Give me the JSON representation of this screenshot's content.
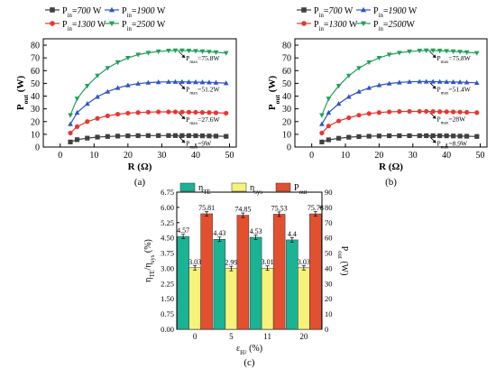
{
  "colors": {
    "p700": "#404040",
    "p1300": "#e8362f",
    "p1900": "#2f55c7",
    "p2500": "#22a05a",
    "eta_te": "#1ab394",
    "eta_sys": "#f7f27a",
    "p_out": "#e2502f"
  },
  "chart_data": [
    {
      "type": "line",
      "panel_label": "(a)",
      "xlabel_main": "R",
      "xlabel_unit": "(Ω)",
      "ylabel_main": "P",
      "ylabel_sub": "out",
      "ylabel_unit": "(W)",
      "xlim": [
        -5,
        52
      ],
      "ylim": [
        0,
        85
      ],
      "xticks": [
        0,
        10,
        20,
        30,
        40,
        50
      ],
      "yticks": [
        0,
        10,
        20,
        30,
        40,
        50,
        60,
        70,
        80
      ],
      "legend": [
        {
          "prefix": "P",
          "sub": "in",
          "eq": "=",
          "value": "700",
          "unit": " W",
          "color_key": "p700",
          "marker": "square"
        },
        {
          "prefix": "P",
          "sub": "in",
          "eq": "=",
          "value": "1900",
          "unit": " W",
          "color_key": "p1900",
          "marker": "triangle"
        },
        {
          "prefix": "P",
          "sub": "in",
          "eq": "=",
          "value": "1300",
          "unit": " W",
          "color_key": "p1300",
          "marker": "circle"
        },
        {
          "prefix": "P",
          "sub": "in",
          "eq": "=",
          "value": "2500",
          "unit": " W",
          "color_key": "p2500",
          "marker": "tri-down"
        }
      ],
      "x": [
        3,
        5,
        8,
        11,
        14,
        17,
        20,
        23,
        26,
        29,
        32,
        34,
        36,
        38,
        40,
        42,
        44,
        46,
        49
      ],
      "series": [
        {
          "name": "700 W",
          "color_key": "p700",
          "marker": "square",
          "values": [
            4,
            5.8,
            7,
            7.8,
            8.3,
            8.6,
            8.8,
            8.95,
            9,
            9,
            9,
            9,
            9,
            8.95,
            8.9,
            8.8,
            8.7,
            8.6,
            8.4
          ]
        },
        {
          "name": "1300 W",
          "color_key": "p1300",
          "marker": "circle",
          "values": [
            11,
            16,
            20,
            22.5,
            24.5,
            25.8,
            26.6,
            27.1,
            27.4,
            27.6,
            27.6,
            27.6,
            27.5,
            27.4,
            27.3,
            27.2,
            27.1,
            26.9,
            26.6
          ]
        },
        {
          "name": "1900 W",
          "color_key": "p1900",
          "marker": "triangle",
          "values": [
            18,
            27,
            34,
            39.5,
            43.5,
            46.5,
            48.5,
            49.8,
            50.6,
            51,
            51.2,
            51.2,
            51.2,
            51.1,
            51,
            50.9,
            50.8,
            50.6,
            50.2
          ]
        },
        {
          "name": "2500 W",
          "color_key": "p2500",
          "marker": "tri-down",
          "values": [
            25,
            38,
            48,
            56,
            62,
            66.5,
            70,
            72.5,
            74,
            75,
            75.6,
            75.8,
            75.8,
            75.6,
            75.4,
            75.1,
            74.8,
            74.4,
            73.8
          ]
        }
      ],
      "annotations": [
        {
          "prefix": "P",
          "sub": "max",
          "text": "=75.8W",
          "x": 35,
          "y": 75.8
        },
        {
          "prefix": "P",
          "sub": "max",
          "text": "=51.2W",
          "x": 35,
          "y": 51.2
        },
        {
          "prefix": "P",
          "sub": "max",
          "text": "=27.6W",
          "x": 35,
          "y": 27.6
        },
        {
          "prefix": "P",
          "sub": "max",
          "text": "=9W",
          "x": 35,
          "y": 9
        }
      ]
    },
    {
      "type": "line",
      "panel_label": "(b)",
      "xlabel_main": "R",
      "xlabel_unit": "(Ω)",
      "ylabel_main": "P",
      "ylabel_sub": "out",
      "ylabel_unit": "(W)",
      "xlim": [
        -5,
        52
      ],
      "ylim": [
        0,
        85
      ],
      "xticks": [
        0,
        10,
        20,
        30,
        40,
        50
      ],
      "yticks": [
        0,
        10,
        20,
        30,
        40,
        50,
        60,
        70,
        80
      ],
      "legend": [
        {
          "prefix": "P",
          "sub": "in",
          "eq": "=",
          "value": "700",
          "unit": " W",
          "color_key": "p700",
          "marker": "square"
        },
        {
          "prefix": "P",
          "sub": "in",
          "eq": "=",
          "value": "1900",
          "unit": " W",
          "color_key": "p1900",
          "marker": "triangle"
        },
        {
          "prefix": "P",
          "sub": "in",
          "eq": "=",
          "value": "1300",
          "unit": " W",
          "color_key": "p1300",
          "marker": "circle"
        },
        {
          "prefix": "P",
          "sub": "in",
          "eq": "=",
          "value": "2500",
          "unit": "W",
          "color_key": "p2500",
          "marker": "tri-down"
        }
      ],
      "x": [
        3,
        5,
        8,
        11,
        14,
        17,
        20,
        23,
        26,
        29,
        32,
        34,
        36,
        38,
        40,
        42,
        44,
        46,
        49
      ],
      "series": [
        {
          "name": "700 W",
          "color_key": "p700",
          "marker": "square",
          "values": [
            4,
            5.7,
            6.9,
            7.7,
            8.2,
            8.5,
            8.7,
            8.85,
            8.9,
            8.9,
            8.9,
            8.9,
            8.9,
            8.85,
            8.8,
            8.7,
            8.6,
            8.5,
            8.3
          ]
        },
        {
          "name": "1300 W",
          "color_key": "p1300",
          "marker": "circle",
          "values": [
            11,
            16.5,
            20.5,
            23,
            25,
            26.3,
            27.1,
            27.6,
            27.9,
            28,
            28,
            28,
            27.9,
            27.8,
            27.7,
            27.6,
            27.5,
            27.3,
            27
          ]
        },
        {
          "name": "1900 W",
          "color_key": "p1900",
          "marker": "triangle",
          "values": [
            18,
            27,
            34,
            39.5,
            43.5,
            46.5,
            48.6,
            49.9,
            50.7,
            51.2,
            51.4,
            51.4,
            51.4,
            51.3,
            51.2,
            51.1,
            51,
            50.8,
            50.4
          ]
        },
        {
          "name": "2500 W",
          "color_key": "p2500",
          "marker": "tri-down",
          "values": [
            25,
            38,
            48,
            56,
            62,
            66.5,
            70,
            72.5,
            74,
            75,
            75.6,
            75.8,
            75.8,
            75.6,
            75.4,
            75.1,
            74.8,
            74.4,
            73.8
          ]
        }
      ],
      "annotations": [
        {
          "prefix": "P",
          "sub": "max",
          "text": "=75.8W",
          "x": 35,
          "y": 75.8
        },
        {
          "prefix": "P",
          "sub": "max",
          "text": "=51.4W",
          "x": 35,
          "y": 51.4
        },
        {
          "prefix": "P",
          "sub": "max",
          "text": "=28W",
          "x": 35,
          "y": 28
        },
        {
          "prefix": "P",
          "sub": "max",
          "text": "=8.9W",
          "x": 35,
          "y": 8.9
        }
      ]
    },
    {
      "type": "bar",
      "panel_label": "(c)",
      "xlabel_main": "ε",
      "xlabel_sub": "H",
      "xlabel_subsub": "2",
      "xlabel_unit": " (%)",
      "ylabel_left": "η_TE/η_sys (%)",
      "ylabel_left_parts": [
        "η",
        "TE",
        "/η",
        "sys",
        " (%)"
      ],
      "ylabel_right_main": "P",
      "ylabel_right_sub": "out",
      "ylabel_right_unit": " (W)",
      "categories": [
        "0",
        "5",
        "11",
        "20"
      ],
      "ylim_left": [
        0,
        6.75
      ],
      "ylim_right": [
        0,
        90
      ],
      "yticks_left": [
        "0.00",
        "0.75",
        "1.50",
        "2.25",
        "3.00",
        "3.75",
        "4.50",
        "5.25",
        "6.00",
        "6.75"
      ],
      "yticks_right": [
        "0",
        "10",
        "20",
        "30",
        "40",
        "50",
        "60",
        "70",
        "80",
        "90"
      ],
      "legend": [
        {
          "main": "η",
          "sub": "TE",
          "color_key": "eta_te"
        },
        {
          "main": "η",
          "sub": "sys",
          "color_key": "eta_sys"
        },
        {
          "main": "P",
          "sub": "out",
          "color_key": "p_out"
        }
      ],
      "series": [
        {
          "name": "η_TE",
          "axis": "left",
          "color_key": "eta_te",
          "values": [
            4.57,
            4.43,
            4.53,
            4.4
          ],
          "labels": [
            "4.57",
            "4.43",
            "4.53",
            "4.4"
          ]
        },
        {
          "name": "η_sys",
          "axis": "left",
          "color_key": "eta_sys",
          "values": [
            3.03,
            2.99,
            3.01,
            3.03
          ],
          "labels": [
            "3.03",
            "2.99",
            "3.01",
            "3.03"
          ]
        },
        {
          "name": "P_out",
          "axis": "right",
          "color_key": "p_out",
          "values": [
            75.81,
            74.85,
            75.53,
            75.78
          ],
          "labels": [
            "75.81",
            "74.85",
            "75.53",
            "75.78"
          ]
        }
      ]
    }
  ]
}
